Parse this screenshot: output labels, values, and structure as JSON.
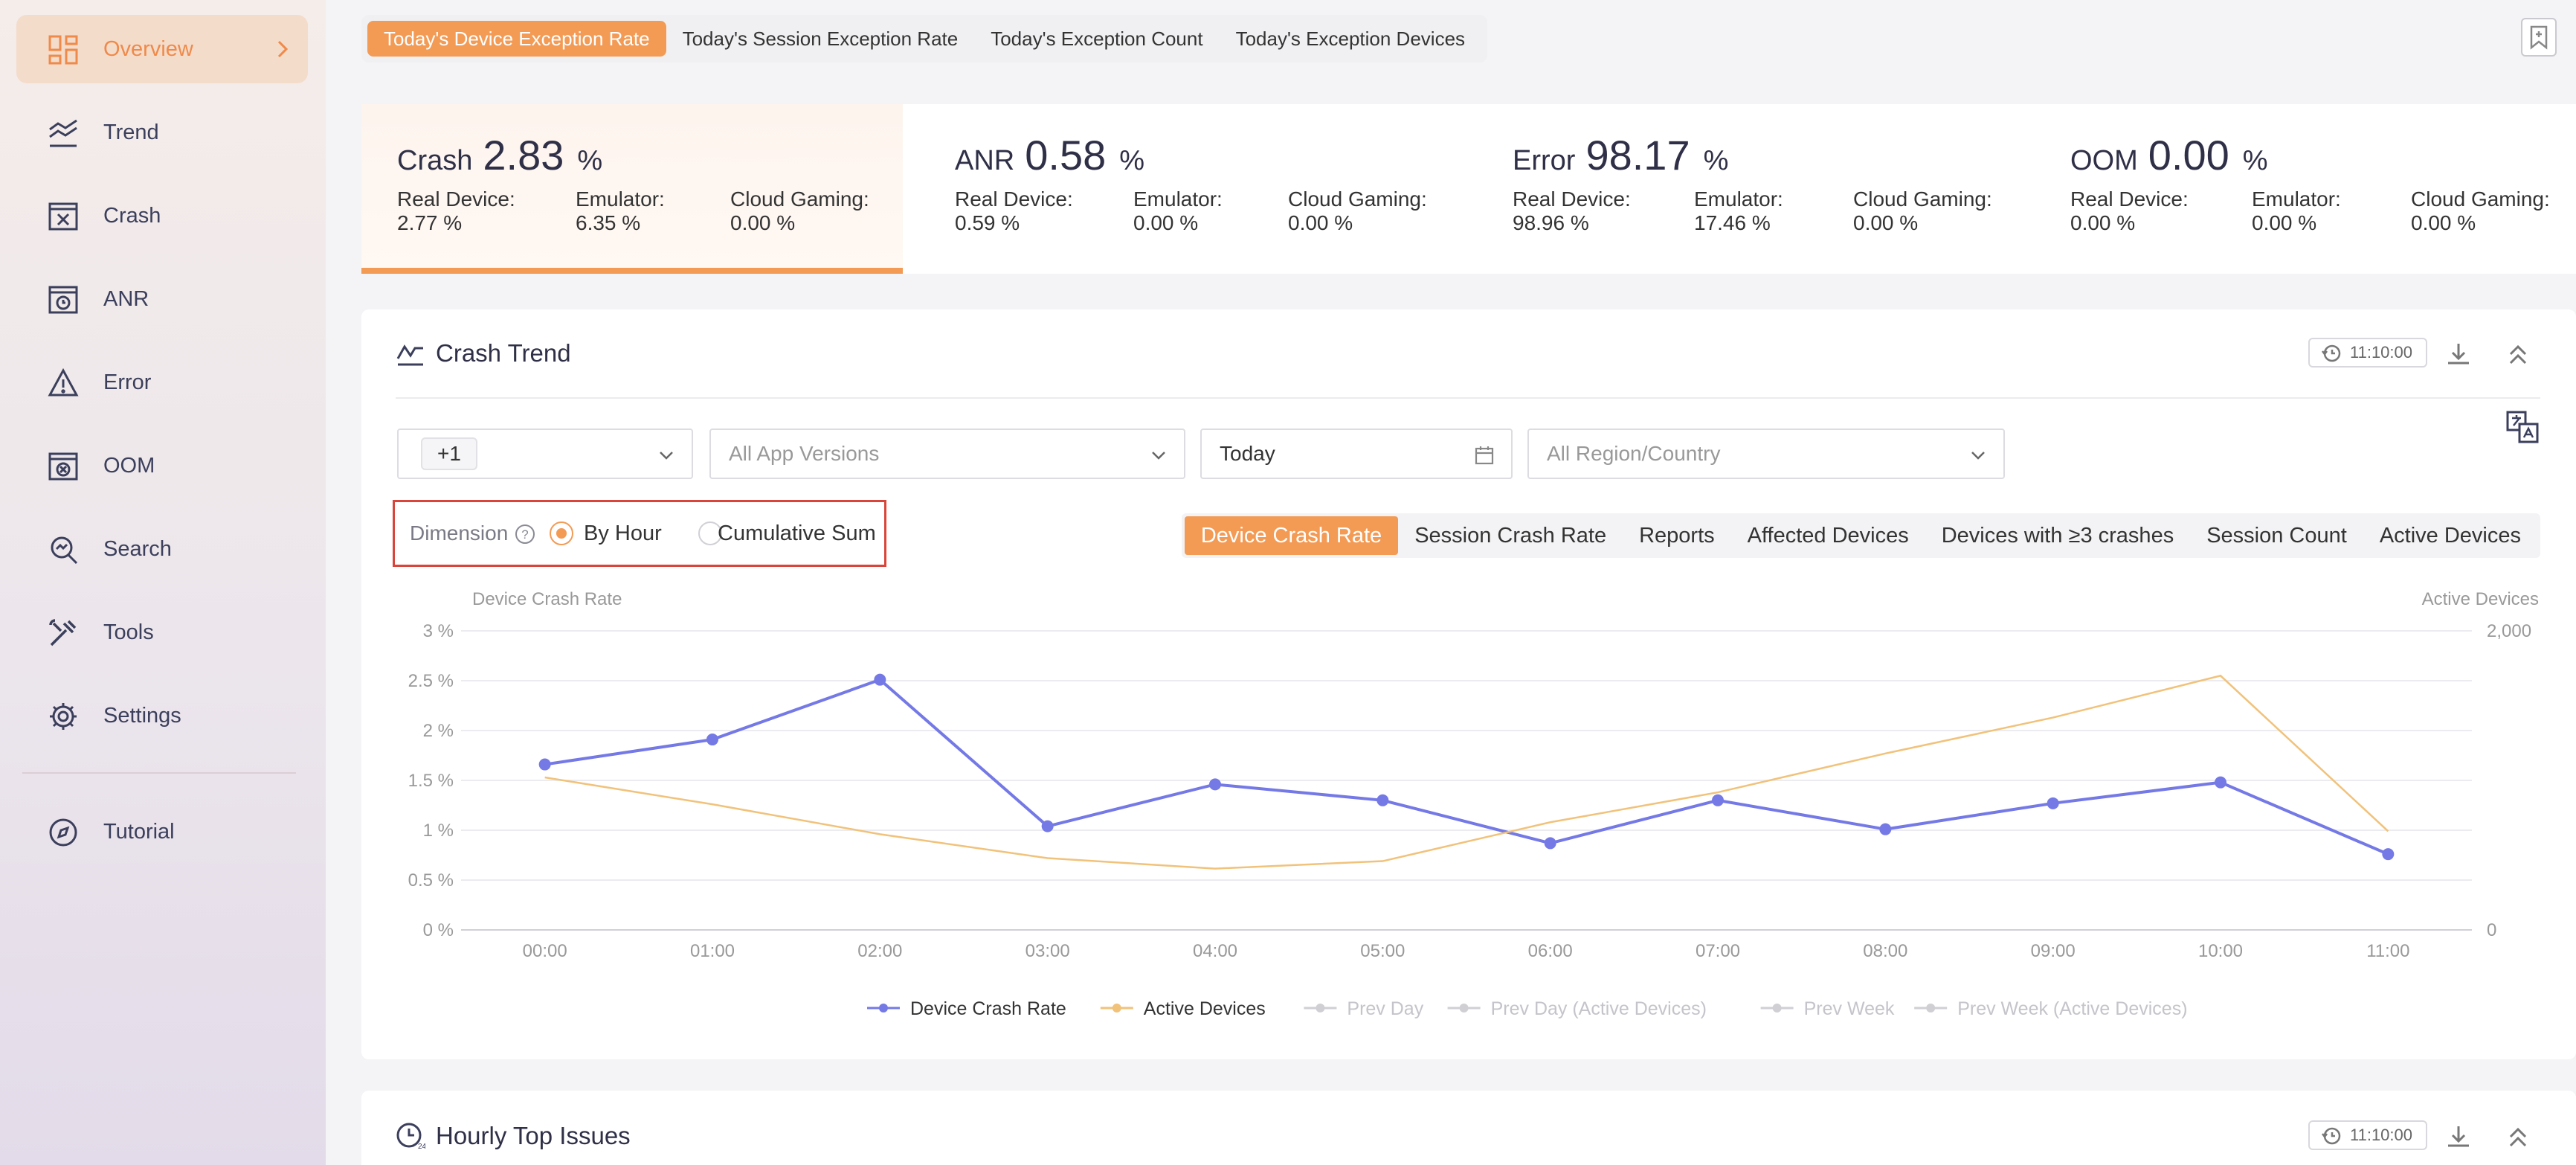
{
  "sidebar": {
    "items": [
      {
        "label": "Overview",
        "icon": "dashboard-icon"
      },
      {
        "label": "Trend",
        "icon": "trend-icon"
      },
      {
        "label": "Crash",
        "icon": "crash-icon"
      },
      {
        "label": "ANR",
        "icon": "anr-icon"
      },
      {
        "label": "Error",
        "icon": "warning-icon"
      },
      {
        "label": "OOM",
        "icon": "oom-icon"
      },
      {
        "label": "Search",
        "icon": "search-icon"
      },
      {
        "label": "Tools",
        "icon": "tools-icon"
      },
      {
        "label": "Settings",
        "icon": "gear-icon"
      },
      {
        "label": "Tutorial",
        "icon": "compass-icon"
      }
    ]
  },
  "top_tabs": [
    "Today's Device Exception Rate",
    "Today's Session Exception Rate",
    "Today's Exception Count",
    "Today's Exception Devices"
  ],
  "stats": [
    {
      "name": "Crash",
      "value": "2.83",
      "unit": "%",
      "real_label": "Real Device:",
      "real": "2.77 %",
      "emu_label": "Emulator:",
      "emu": "6.35 %",
      "cloud_label": "Cloud Gaming:",
      "cloud": "0.00 %"
    },
    {
      "name": "ANR",
      "value": "0.58",
      "unit": "%",
      "real_label": "Real Device:",
      "real": "0.59 %",
      "emu_label": "Emulator:",
      "emu": "0.00 %",
      "cloud_label": "Cloud Gaming:",
      "cloud": "0.00 %"
    },
    {
      "name": "Error",
      "value": "98.17",
      "unit": "%",
      "real_label": "Real Device:",
      "real": "98.96 %",
      "emu_label": "Emulator:",
      "emu": "17.46 %",
      "cloud_label": "Cloud Gaming:",
      "cloud": "0.00 %"
    },
    {
      "name": "OOM",
      "value": "0.00",
      "unit": "%",
      "real_label": "Real Device:",
      "real": "0.00 %",
      "emu_label": "Emulator:",
      "emu": "0.00 %",
      "cloud_label": "Cloud Gaming:",
      "cloud": "0.00 %"
    }
  ],
  "trend": {
    "title": "Crash Trend",
    "time": "11:10:00",
    "filters": {
      "version_tag": "+1",
      "app_versions_placeholder": "All App Versions",
      "date": "Today",
      "region_placeholder": "All Region/Country"
    },
    "dimension": {
      "label": "Dimension",
      "help": "?",
      "by_hour": "By Hour",
      "cumulative": "Cumulative Sum"
    },
    "metric_tabs": [
      "Device Crash Rate",
      "Session Crash Rate",
      "Reports",
      "Affected Devices",
      "Devices with ≥3 crashes",
      "Session Count",
      "Active Devices"
    ]
  },
  "hourly": {
    "title": "Hourly Top Issues",
    "time": "11:10:00"
  },
  "chart_data": {
    "type": "line",
    "categories": [
      "00:00",
      "01:00",
      "02:00",
      "03:00",
      "04:00",
      "05:00",
      "06:00",
      "07:00",
      "08:00",
      "09:00",
      "10:00",
      "11:00"
    ],
    "left_axis": {
      "title": "Device Crash Rate",
      "ticks": [
        "0 %",
        "0.5 %",
        "1 %",
        "1.5 %",
        "2 %",
        "2.5 %",
        "3 %"
      ],
      "ylim": [
        0,
        3
      ]
    },
    "right_axis": {
      "title": "Active Devices",
      "ticks": [
        "0",
        "2,000"
      ],
      "ylim": [
        0,
        2000
      ]
    },
    "series": [
      {
        "name": "Device Crash Rate",
        "axis": "left",
        "color": "#7479e6",
        "values": [
          1.66,
          1.91,
          2.51,
          1.04,
          1.46,
          1.3,
          0.87,
          1.3,
          1.01,
          1.27,
          1.48,
          0.76
        ]
      },
      {
        "name": "Active Devices",
        "axis": "right",
        "color": "#f1c27a",
        "values": [
          1020,
          840,
          640,
          480,
          410,
          460,
          720,
          920,
          1180,
          1420,
          1700,
          660
        ]
      }
    ],
    "legend": [
      {
        "name": "Device Crash Rate",
        "color": "#7479e6",
        "active": true
      },
      {
        "name": "Active Devices",
        "color": "#f1c27a",
        "active": true
      },
      {
        "name": "Prev Day",
        "color": "#cfcfd4",
        "active": false
      },
      {
        "name": "Prev Day (Active Devices)",
        "color": "#cfcfd4",
        "active": false
      },
      {
        "name": "Prev Week",
        "color": "#cfcfd4",
        "active": false
      },
      {
        "name": "Prev Week (Active Devices)",
        "color": "#cfcfd4",
        "active": false
      }
    ]
  }
}
